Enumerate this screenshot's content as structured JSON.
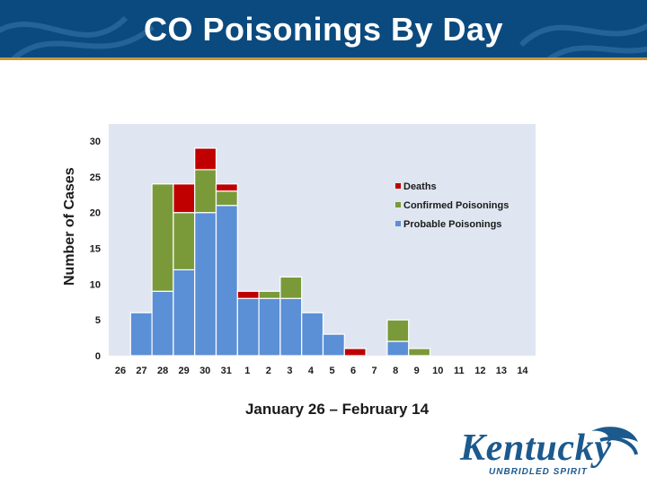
{
  "slide": {
    "title": "CO Poisonings By Day",
    "logo_text": "Kentucky",
    "logo_tagline": "UNBRIDLED SPIRIT",
    "banner_color": "#0b4a7e",
    "accent_color": "#c59a3c"
  },
  "chart_data": {
    "type": "bar",
    "stacked": true,
    "xlabel": "January 26 – February 14",
    "ylabel": "Number of Cases",
    "ylim": [
      0,
      30
    ],
    "yticks": [
      0,
      5,
      10,
      15,
      20,
      25,
      30
    ],
    "grid": false,
    "legend_position": "top-right",
    "background_color": "#dfe6f1",
    "categories": [
      "26",
      "27",
      "28",
      "29",
      "30",
      "31",
      "1",
      "2",
      "3",
      "4",
      "5",
      "6",
      "7",
      "8",
      "9",
      "10",
      "11",
      "12",
      "13",
      "14"
    ],
    "series": [
      {
        "name": "Probable Poisonings",
        "color": "#5b8fd6",
        "values": [
          0,
          6,
          9,
          12,
          20,
          21,
          8,
          8,
          8,
          6,
          3,
          0,
          0,
          2,
          0,
          0,
          0,
          0,
          0,
          0
        ]
      },
      {
        "name": "Confirmed Poisonings",
        "color": "#7a9a3a",
        "values": [
          0,
          0,
          15,
          8,
          6,
          2,
          0,
          1,
          3,
          0,
          0,
          0,
          0,
          3,
          1,
          0,
          0,
          0,
          0,
          0
        ]
      },
      {
        "name": "Deaths",
        "color": "#c00000",
        "values": [
          0,
          0,
          0,
          4,
          3,
          1,
          1,
          0,
          0,
          0,
          0,
          1,
          0,
          0,
          0,
          0,
          0,
          0,
          0,
          0
        ]
      }
    ],
    "legend_order": [
      "Deaths",
      "Confirmed Poisonings",
      "Probable Poisonings"
    ]
  }
}
